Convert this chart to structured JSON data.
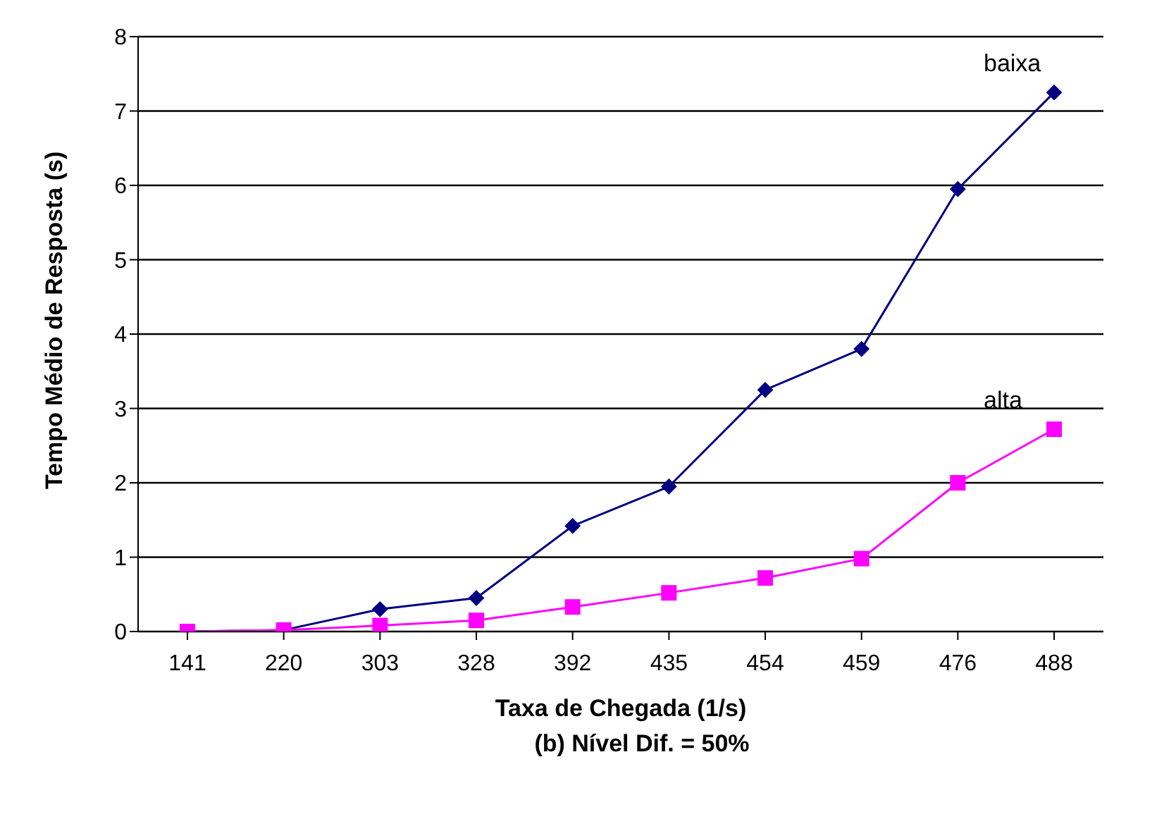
{
  "chart_data": {
    "type": "line",
    "title": "(b) Nível Dif. = 50%",
    "xlabel": "Taxa de Chegada (1/s)",
    "ylabel": "Tempo Médio de Resposta (s)",
    "categories": [
      "141",
      "220",
      "303",
      "328",
      "392",
      "435",
      "454",
      "459",
      "476",
      "488"
    ],
    "series": [
      {
        "name": "baixa",
        "color": "#000080",
        "marker": "diamond",
        "values": [
          0,
          0.02,
          0.3,
          0.45,
          1.42,
          1.95,
          3.25,
          3.8,
          5.95,
          7.25
        ]
      },
      {
        "name": "alta",
        "color": "#ff00ff",
        "marker": "square",
        "values": [
          0,
          0.02,
          0.08,
          0.15,
          0.33,
          0.52,
          0.72,
          0.98,
          2.0,
          2.72
        ]
      }
    ],
    "ylim": [
      0,
      8
    ],
    "yticks": [
      0,
      1,
      2,
      3,
      4,
      5,
      6,
      7,
      8
    ],
    "grid": "y",
    "legend": false,
    "line_style": "solid"
  }
}
